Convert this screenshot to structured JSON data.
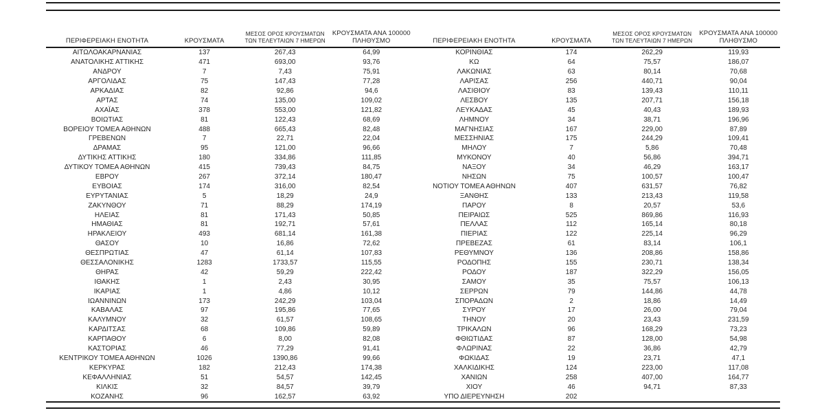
{
  "document": {
    "type": "covid-cases-by-regional-unit-table",
    "language": "el",
    "text_color": "#262626",
    "rule_color": "#1a1a1a",
    "background": "#ffffff"
  },
  "headers": {
    "region": "ΠΕΡΙΦΕΡΕΙΑΚΗ ΕΝΟΤΗΤΑ",
    "cases": "ΚΡΟΥΣΜΑΤΑ",
    "avg7_line1": "ΜΕΣΟΣ ΟΡΟΣ ΚΡΟΥΣΜΑΤΩΝ",
    "avg7_line2": "ΤΩΝ ΤΕΛΕΥΤΑΙΩΝ 7 ΗΜΕΡΩΝ",
    "per100k_line1": "ΚΡΟΥΣΜΑΤΑ ΑΝΑ 100000",
    "per100k_line2": "ΠΛΗΘΥΣΜΟ"
  },
  "table_left": {
    "rows": [
      [
        "ΑΙΤΩΛΟΑΚΑΡΝΑΝΙΑΣ",
        "137",
        "267,43",
        "64,99"
      ],
      [
        "ΑΝΑΤΟΛΙΚΗΣ ΑΤΤΙΚΗΣ",
        "471",
        "693,00",
        "93,76"
      ],
      [
        "ΑΝΔΡΟΥ",
        "7",
        "7,43",
        "75,91"
      ],
      [
        "ΑΡΓΟΛΙΔΑΣ",
        "75",
        "147,43",
        "77,28"
      ],
      [
        "ΑΡΚΑΔΙΑΣ",
        "82",
        "92,86",
        "94,6"
      ],
      [
        "ΑΡΤΑΣ",
        "74",
        "135,00",
        "109,02"
      ],
      [
        "ΑΧΑΪΑΣ",
        "378",
        "553,00",
        "121,82"
      ],
      [
        "ΒΟΙΩΤΙΑΣ",
        "81",
        "122,43",
        "68,69"
      ],
      [
        "ΒΟΡΕΙΟΥ ΤΟΜΕΑ ΑΘΗΝΩΝ",
        "488",
        "665,43",
        "82,48"
      ],
      [
        "ΓΡΕΒΕΝΩΝ",
        "7",
        "22,71",
        "22,04"
      ],
      [
        "ΔΡΑΜΑΣ",
        "95",
        "121,00",
        "96,66"
      ],
      [
        "ΔΥΤΙΚΗΣ ΑΤΤΙΚΗΣ",
        "180",
        "334,86",
        "111,85"
      ],
      [
        "ΔΥΤΙΚΟΥ ΤΟΜΕΑ ΑΘΗΝΩΝ",
        "415",
        "739,43",
        "84,75"
      ],
      [
        "ΕΒΡΟΥ",
        "267",
        "372,14",
        "180,47"
      ],
      [
        "ΕΥΒΟΙΑΣ",
        "174",
        "316,00",
        "82,54"
      ],
      [
        "ΕΥΡΥΤΑΝΙΑΣ",
        "5",
        "18,29",
        "24,9"
      ],
      [
        "ΖΑΚΥΝΘΟΥ",
        "71",
        "88,29",
        "174,19"
      ],
      [
        "ΗΛΕΙΑΣ",
        "81",
        "171,43",
        "50,85"
      ],
      [
        "ΗΜΑΘΙΑΣ",
        "81",
        "192,71",
        "57,61"
      ],
      [
        "ΗΡΑΚΛΕΙΟΥ",
        "493",
        "681,14",
        "161,38"
      ],
      [
        "ΘΑΣΟΥ",
        "10",
        "16,86",
        "72,62"
      ],
      [
        "ΘΕΣΠΡΩΤΙΑΣ",
        "47",
        "61,14",
        "107,83"
      ],
      [
        "ΘΕΣΣΑΛΟΝΙΚΗΣ",
        "1283",
        "1733,57",
        "115,55"
      ],
      [
        "ΘΗΡΑΣ",
        "42",
        "59,29",
        "222,42"
      ],
      [
        "ΙΘΑΚΗΣ",
        "1",
        "2,43",
        "30,95"
      ],
      [
        "ΙΚΑΡΙΑΣ",
        "1",
        "4,86",
        "10,12"
      ],
      [
        "ΙΩΑΝΝΙΝΩΝ",
        "173",
        "242,29",
        "103,04"
      ],
      [
        "ΚΑΒΑΛΑΣ",
        "97",
        "195,86",
        "77,65"
      ],
      [
        "ΚΑΛΥΜΝΟΥ",
        "32",
        "61,57",
        "108,65"
      ],
      [
        "ΚΑΡΔΙΤΣΑΣ",
        "68",
        "109,86",
        "59,89"
      ],
      [
        "ΚΑΡΠΑΘΟΥ",
        "6",
        "8,00",
        "82,08"
      ],
      [
        "ΚΑΣΤΟΡΙΑΣ",
        "46",
        "77,29",
        "91,41"
      ],
      [
        "ΚΕΝΤΡΙΚΟΥ ΤΟΜΕΑ ΑΘΗΝΩΝ",
        "1026",
        "1390,86",
        "99,66"
      ],
      [
        "ΚΕΡΚΥΡΑΣ",
        "182",
        "212,43",
        "174,38"
      ],
      [
        "ΚΕΦΑΛΛΗΝΙΑΣ",
        "51",
        "54,57",
        "142,45"
      ],
      [
        "ΚΙΛΚΙΣ",
        "32",
        "84,57",
        "39,79"
      ],
      [
        "ΚΟΖΑΝΗΣ",
        "96",
        "162,57",
        "63,92"
      ]
    ]
  },
  "table_right": {
    "rows": [
      [
        "ΚΟΡΙΝΘΙΑΣ",
        "174",
        "262,29",
        "119,93"
      ],
      [
        "ΚΩ",
        "64",
        "75,57",
        "186,07"
      ],
      [
        "ΛΑΚΩΝΙΑΣ",
        "63",
        "80,14",
        "70,68"
      ],
      [
        "ΛΑΡΙΣΑΣ",
        "256",
        "440,71",
        "90,04"
      ],
      [
        "ΛΑΣΙΘΙΟΥ",
        "83",
        "139,43",
        "110,11"
      ],
      [
        "ΛΕΣΒΟΥ",
        "135",
        "207,71",
        "156,18"
      ],
      [
        "ΛΕΥΚΑΔΑΣ",
        "45",
        "40,43",
        "189,93"
      ],
      [
        "ΛΗΜΝΟΥ",
        "34",
        "38,71",
        "196,96"
      ],
      [
        "ΜΑΓΝΗΣΙΑΣ",
        "167",
        "229,00",
        "87,89"
      ],
      [
        "ΜΕΣΣΗΝΙΑΣ",
        "175",
        "244,29",
        "109,41"
      ],
      [
        "ΜΗΛΟΥ",
        "7",
        "5,86",
        "70,48"
      ],
      [
        "ΜΥΚΟΝΟΥ",
        "40",
        "56,86",
        "394,71"
      ],
      [
        "ΝΑΞΟΥ",
        "34",
        "46,29",
        "163,17"
      ],
      [
        "ΝΗΣΩΝ",
        "75",
        "100,57",
        "100,47"
      ],
      [
        "ΝΟΤΙΟΥ ΤΟΜΕΑ ΑΘΗΝΩΝ",
        "407",
        "631,57",
        "76,82"
      ],
      [
        "ΞΑΝΘΗΣ",
        "133",
        "213,43",
        "119,58"
      ],
      [
        "ΠΑΡΟΥ",
        "8",
        "20,57",
        "53,6"
      ],
      [
        "ΠΕΙΡΑΙΩΣ",
        "525",
        "869,86",
        "116,93"
      ],
      [
        "ΠΕΛΛΑΣ",
        "112",
        "165,14",
        "80,18"
      ],
      [
        "ΠΙΕΡΙΑΣ",
        "122",
        "225,14",
        "96,29"
      ],
      [
        "ΠΡΕΒΕΖΑΣ",
        "61",
        "83,14",
        "106,1"
      ],
      [
        "ΡΕΘΥΜΝΟΥ",
        "136",
        "208,86",
        "158,86"
      ],
      [
        "ΡΟΔΟΠΗΣ",
        "155",
        "230,71",
        "138,34"
      ],
      [
        "ΡΟΔΟΥ",
        "187",
        "322,29",
        "156,05"
      ],
      [
        "ΣΑΜΟΥ",
        "35",
        "75,57",
        "106,13"
      ],
      [
        "ΣΕΡΡΩΝ",
        "79",
        "144,86",
        "44,78"
      ],
      [
        "ΣΠΟΡΑΔΩΝ",
        "2",
        "18,86",
        "14,49"
      ],
      [
        "ΣΥΡΟΥ",
        "17",
        "26,00",
        "79,04"
      ],
      [
        "ΤΗΝΟΥ",
        "20",
        "23,43",
        "231,59"
      ],
      [
        "ΤΡΙΚΑΛΩΝ",
        "96",
        "168,29",
        "73,23"
      ],
      [
        "ΦΘΙΩΤΙΔΑΣ",
        "87",
        "128,00",
        "54,98"
      ],
      [
        "ΦΛΩΡΙΝΑΣ",
        "22",
        "36,86",
        "42,79"
      ],
      [
        "ΦΩΚΙΔΑΣ",
        "19",
        "23,71",
        "47,1"
      ],
      [
        "ΧΑΛΚΙΔΙΚΗΣ",
        "124",
        "223,00",
        "117,08"
      ],
      [
        "ΧΑΝΙΩΝ",
        "258",
        "407,00",
        "164,77"
      ],
      [
        "ΧΙΟΥ",
        "46",
        "94,71",
        "87,33"
      ],
      [
        "ΥΠΟ ΔΙΕΡΕΥΝΗΣΗ",
        "202",
        "",
        ""
      ]
    ]
  }
}
